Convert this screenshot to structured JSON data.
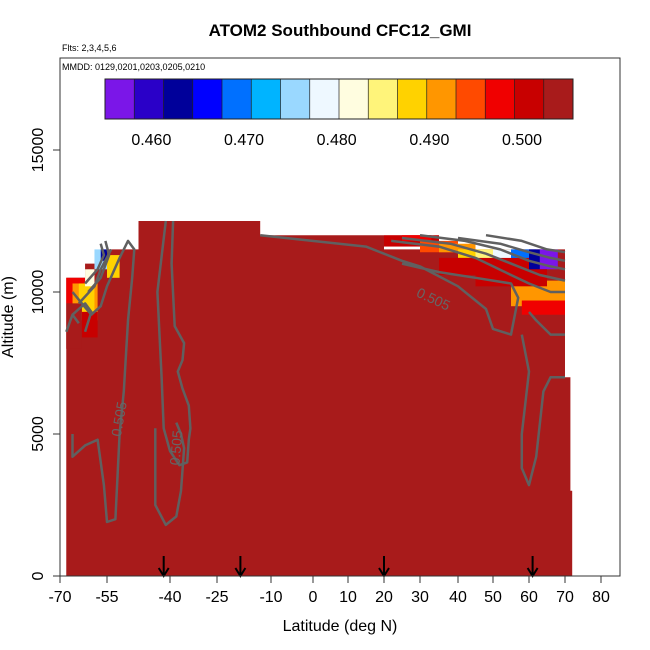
{
  "chart_data": {
    "type": "heatmap",
    "title": "ATOM2 Southbound CFC12_GMI",
    "subtitle_flights": "Flts: 2,3,4,5,6",
    "subtitle_dates": "MMDD: 0129,0201,0203,0205,0210",
    "xlabel": "Latitude (deg N)",
    "ylabel": "Altitude (m)",
    "xlim": [
      -70,
      80
    ],
    "ylim": [
      0,
      17000
    ],
    "x_ticks": [
      -70,
      -55,
      -40,
      -25,
      -10,
      0,
      10,
      20,
      30,
      40,
      50,
      60,
      70,
      80
    ],
    "x_tick_labels": [
      "-70",
      "-55",
      "-40",
      "-25",
      "-10",
      "0",
      "10",
      "20",
      "30",
      "40",
      "50",
      "60",
      "70",
      "80"
    ],
    "y_ticks": [
      0,
      5000,
      10000,
      15000
    ],
    "y_tick_labels": [
      "0",
      "5000",
      "10000",
      "15000"
    ],
    "colorbar": {
      "range": [
        0.455,
        0.5055
      ],
      "ticks": [
        0.46,
        0.47,
        0.48,
        0.49,
        0.5
      ],
      "tick_labels": [
        "0.460",
        "0.470",
        "0.480",
        "0.490",
        "0.500"
      ],
      "colors": [
        "#7b16e8",
        "#2a00c8",
        "#00009a",
        "#0000ff",
        "#0070ff",
        "#00b4ff",
        "#9ad8ff",
        "#eef8ff",
        "#fffde0",
        "#fff47a",
        "#ffd200",
        "#ff9600",
        "#ff4a00",
        "#f00000",
        "#c80000",
        "#a81b1b"
      ]
    },
    "contour_labels": [
      {
        "text": "0.505",
        "x": -51,
        "y": 5500,
        "rotate": -80
      },
      {
        "text": "0.505",
        "x": -36.5,
        "y": 4500,
        "rotate": -85
      },
      {
        "text": "0.505",
        "x": 33,
        "y": 9600,
        "rotate": 25
      }
    ],
    "flight_markers_lat": [
      -41.5,
      -18.5,
      20,
      61
    ],
    "data_region": {
      "xmin": -68,
      "xmax": 72,
      "ymin": 0,
      "ymax": 12500
    },
    "background_value": 0.5045
  }
}
